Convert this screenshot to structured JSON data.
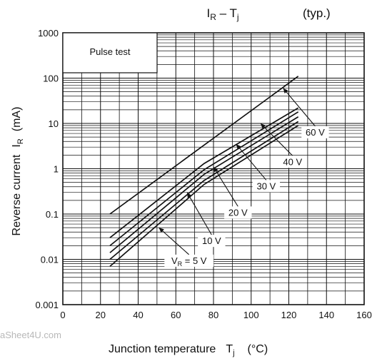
{
  "chart_data": {
    "type": "line",
    "title": "IR – Tj",
    "title_parts": {
      "main": "I",
      "main_sub": "R",
      "sep": " – T",
      "sep_sub": "j",
      "note": "(typ.)"
    },
    "xlabel": "Junction temperature",
    "xlabel_parts": {
      "var": "T",
      "var_sub": "j",
      "unit": "(°C)"
    },
    "ylabel": "Reverse current IR (mA)",
    "ylabel_parts": {
      "name": "Reverse current",
      "var": "I",
      "var_sub": "R",
      "unit": "(mA)"
    },
    "xlim": [
      0,
      160
    ],
    "ylim": [
      0.001,
      1000
    ],
    "y_scale": "log",
    "grid": true,
    "x_ticks": [
      "0",
      "20",
      "40",
      "60",
      "80",
      "100",
      "120",
      "140",
      "160"
    ],
    "y_ticks": [
      "0.001",
      "0.01",
      "0.1",
      "1",
      "10",
      "100",
      "1000"
    ],
    "annotation_box": "Pulse test",
    "watermark": "aSheet4U.com",
    "series": [
      {
        "name": "VR = 5 V",
        "label_parts": {
          "pre": "V",
          "sub": "R",
          "post": " = 5 V"
        },
        "x": [
          25,
          75,
          125
        ],
        "y": [
          0.007,
          0.45,
          9
        ]
      },
      {
        "name": "10 V",
        "label_parts": {
          "pre": "10 V",
          "sub": "",
          "post": ""
        },
        "x": [
          25,
          75,
          125
        ],
        "y": [
          0.01,
          0.55,
          11
        ]
      },
      {
        "name": "20 V",
        "label_parts": {
          "pre": "20 V",
          "sub": "",
          "post": ""
        },
        "x": [
          25,
          75,
          125
        ],
        "y": [
          0.014,
          0.75,
          14
        ]
      },
      {
        "name": "30 V",
        "label_parts": {
          "pre": "30 V",
          "sub": "",
          "post": ""
        },
        "x": [
          25,
          75,
          125
        ],
        "y": [
          0.02,
          0.95,
          18
        ]
      },
      {
        "name": "40 V",
        "label_parts": {
          "pre": "40 V",
          "sub": "",
          "post": ""
        },
        "x": [
          25,
          75,
          125
        ],
        "y": [
          0.03,
          1.3,
          22
        ]
      },
      {
        "name": "60 V",
        "label_parts": {
          "pre": "60 V",
          "sub": "",
          "post": ""
        },
        "x": [
          25,
          125
        ],
        "y": [
          0.1,
          110
        ]
      }
    ]
  }
}
